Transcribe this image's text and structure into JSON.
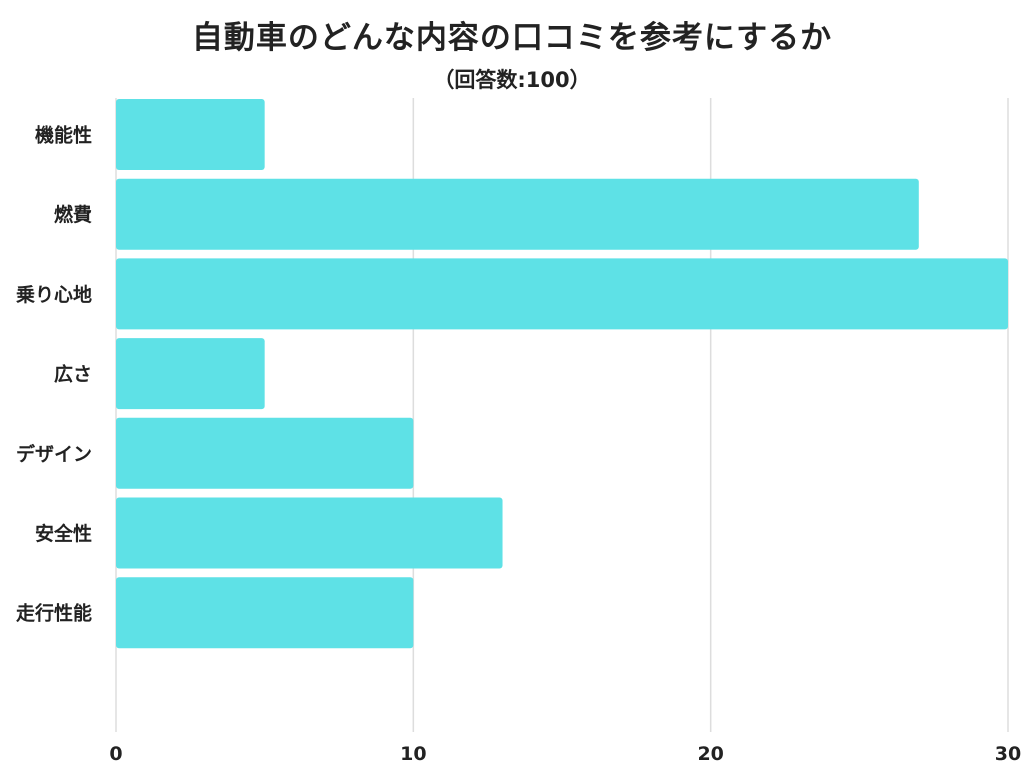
{
  "chart_data": {
    "type": "bar",
    "orientation": "horizontal",
    "title": "自動車のどんな内容の口コミを参考にするか",
    "subtitle": "（回答数:100）",
    "categories": [
      "機能性",
      "燃費",
      "乗り心地",
      "広さ",
      "デザイン",
      "安全性",
      "走行性能"
    ],
    "values": [
      5,
      27,
      30,
      5,
      10,
      13,
      10
    ],
    "xlim": [
      0,
      30
    ],
    "xticks": [
      0,
      10,
      20,
      30
    ],
    "grid": "vertical",
    "bar_color": "#5ee1e6",
    "grid_color": "#dddddd"
  }
}
